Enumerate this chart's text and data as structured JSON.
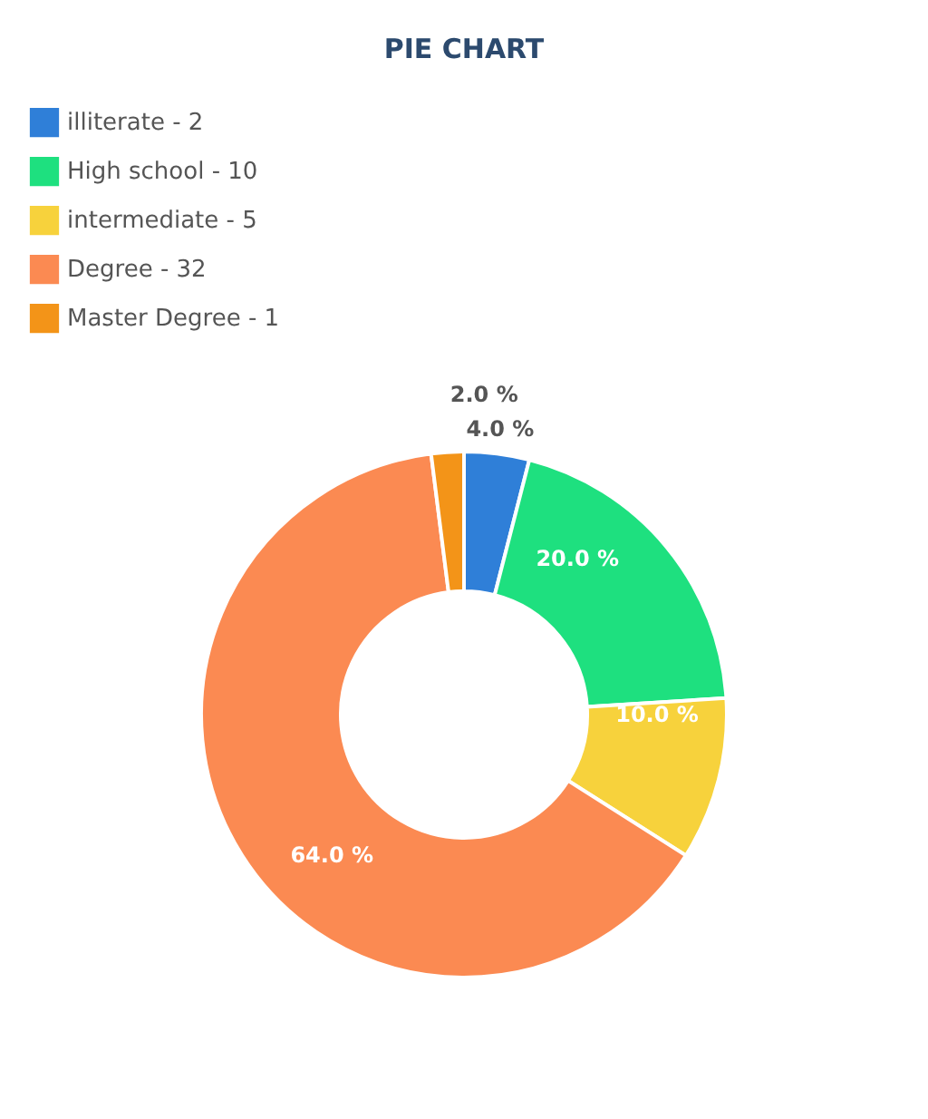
{
  "chart_data": {
    "type": "donut",
    "title": "PIE CHART",
    "categories": [
      "illiterate  - 2",
      "High school  - 10",
      "intermediate  - 5",
      "Degree  - 32",
      "Master Degree  - 1"
    ],
    "values": [
      4,
      20,
      10,
      64,
      2
    ],
    "colors": [
      "#2f7fd8",
      "#1ee07f",
      "#f7d23c",
      "#fb8a52",
      "#f39418"
    ],
    "value_labels": [
      "4.0 %",
      "20.0 %",
      "10.0 %",
      "64.0 %",
      "2.0 %"
    ],
    "legend": "top left"
  }
}
